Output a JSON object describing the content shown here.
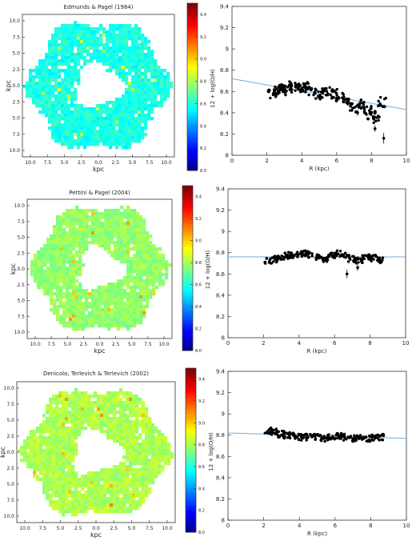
{
  "chart_data": [
    {
      "type": "heatmap",
      "title": "Edmunds & Pagel (1984)",
      "xlabel": "kpc",
      "ylabel": "kpc",
      "x_ticks": [
        "10.0",
        "7.5",
        "5.0",
        "2.5",
        "0.0",
        "2.5",
        "5.0",
        "7.5",
        "10.0"
      ],
      "y_ticks": [
        "10.0",
        "7.5",
        "5.0",
        "2.5",
        "0.0",
        "2.5",
        "5.0",
        "7.5",
        "10.0"
      ],
      "colorbar": {
        "label": "12 + log(O/H)",
        "range": [
          8.0,
          9.5
        ],
        "ticks": [
          "8.0",
          "8.2",
          "8.4",
          "8.6",
          "8.8",
          "9.0",
          "9.2",
          "9.4"
        ]
      },
      "typical_value": 8.6
    },
    {
      "type": "scatter",
      "xlabel": "R (kpc)",
      "ylabel": "",
      "xlim": [
        0,
        10
      ],
      "ylim": [
        8.0,
        9.4
      ],
      "x_ticks": [
        "0",
        "2",
        "4",
        "6",
        "8",
        "10"
      ],
      "y_ticks": [
        "8",
        "8.2",
        "8.4",
        "8.6",
        "8.8",
        "9",
        "9.2",
        "9.4"
      ],
      "fit_line": {
        "x": [
          0,
          10
        ],
        "y": [
          8.72,
          8.43
        ]
      },
      "series": [
        {
          "x": [
            2.3,
            2.5,
            2.8,
            3.0,
            3.2,
            3.5,
            3.8,
            4.0,
            4.3,
            4.6,
            5.0,
            5.4,
            5.8,
            6.2,
            6.6,
            7.0,
            7.4,
            7.8,
            8.0,
            8.3,
            8.6
          ],
          "y": [
            8.58,
            8.62,
            8.63,
            8.64,
            8.61,
            8.66,
            8.62,
            8.63,
            8.65,
            8.6,
            8.57,
            8.6,
            8.58,
            8.55,
            8.5,
            8.45,
            8.48,
            8.42,
            8.38,
            8.35,
            8.5
          ]
        }
      ],
      "error_points": [
        {
          "x": 8.2,
          "y": 8.25,
          "err": 0.03
        },
        {
          "x": 8.7,
          "y": 8.16,
          "err": 0.05
        },
        {
          "x": 7.2,
          "y": 8.4,
          "err": 0.03
        }
      ]
    },
    {
      "type": "heatmap",
      "title": "Pettini & Pagel (2004)",
      "xlabel": "kpc",
      "ylabel": "kpc",
      "x_ticks": [
        "10.0",
        "7.5",
        "5.0",
        "2.5",
        "0.0",
        "2.5",
        "5.0",
        "7.5",
        "10.0"
      ],
      "y_ticks": [
        "10.0",
        "7.5",
        "5.0",
        "2.5",
        "0.0",
        "2.5",
        "5.0",
        "7.5",
        "10.0"
      ],
      "colorbar": {
        "label": "12 + log(O/H)",
        "range": [
          8.0,
          9.5
        ],
        "ticks": [
          "8.0",
          "8.2",
          "8.4",
          "8.6",
          "8.8",
          "9.0",
          "9.2",
          "9.4"
        ]
      },
      "typical_value": 8.78
    },
    {
      "type": "scatter",
      "xlabel": "R (kpc)",
      "ylabel": "",
      "xlim": [
        0,
        10
      ],
      "ylim": [
        8.0,
        9.4
      ],
      "x_ticks": [
        "0",
        "2",
        "4",
        "6",
        "8",
        "10"
      ],
      "y_ticks": [
        "8",
        "8.2",
        "8.4",
        "8.6",
        "8.8",
        "9",
        "9.2",
        "9.4"
      ],
      "fit_line": {
        "x": [
          0,
          10
        ],
        "y": [
          8.76,
          8.76
        ]
      },
      "series": [
        {
          "x": [
            2.3,
            2.6,
            3.0,
            3.3,
            3.6,
            4.0,
            4.3,
            4.6,
            5.0,
            5.4,
            5.8,
            6.2,
            6.6,
            7.0,
            7.4,
            7.8,
            8.2,
            8.6
          ],
          "y": [
            8.72,
            8.74,
            8.76,
            8.77,
            8.78,
            8.79,
            8.8,
            8.78,
            8.76,
            8.74,
            8.78,
            8.79,
            8.77,
            8.74,
            8.73,
            8.76,
            8.75,
            8.73
          ]
        }
      ],
      "error_points": [
        {
          "x": 6.7,
          "y": 8.6,
          "err": 0.04
        },
        {
          "x": 7.3,
          "y": 8.66,
          "err": 0.03
        }
      ]
    },
    {
      "type": "heatmap",
      "title": "Denicolo, Terlevich & Terlevich (2002)",
      "xlabel": "kpc",
      "ylabel": "kpc",
      "x_ticks": [
        "10.0",
        "7.5",
        "5.0",
        "2.5",
        "0.0",
        "2.5",
        "5.0",
        "7.5",
        "10.0"
      ],
      "y_ticks": [
        "10.0",
        "7.5",
        "5.0",
        "2.5",
        "0.0",
        "2.5",
        "5.0",
        "7.5",
        "10.0"
      ],
      "colorbar": {
        "label": "12 + log(O/H)",
        "range": [
          8.0,
          9.5
        ],
        "ticks": [
          "8.0",
          "8.2",
          "8.4",
          "8.6",
          "8.8",
          "9.0",
          "9.2",
          "9.4"
        ]
      },
      "typical_value": 8.82
    },
    {
      "type": "scatter",
      "xlabel": "R (kpc)",
      "ylabel": "",
      "xlim": [
        0,
        10
      ],
      "ylim": [
        8.0,
        9.4
      ],
      "x_ticks": [
        "0",
        "2",
        "4",
        "6",
        "8",
        "10"
      ],
      "y_ticks": [
        "8",
        "8.2",
        "8.4",
        "8.6",
        "8.8",
        "9",
        "9.2",
        "9.4"
      ],
      "fit_line": {
        "x": [
          0,
          10
        ],
        "y": [
          8.82,
          8.77
        ]
      },
      "series": [
        {
          "x": [
            2.3,
            2.6,
            3.0,
            3.3,
            3.6,
            4.0,
            4.3,
            4.6,
            5.0,
            5.4,
            5.8,
            6.2,
            6.6,
            7.0,
            7.4,
            7.8,
            8.2,
            8.5
          ],
          "y": [
            8.84,
            8.83,
            8.81,
            8.8,
            8.79,
            8.78,
            8.78,
            8.79,
            8.78,
            8.77,
            8.78,
            8.79,
            8.78,
            8.77,
            8.78,
            8.77,
            8.78,
            8.78
          ]
        }
      ],
      "error_points": []
    }
  ]
}
